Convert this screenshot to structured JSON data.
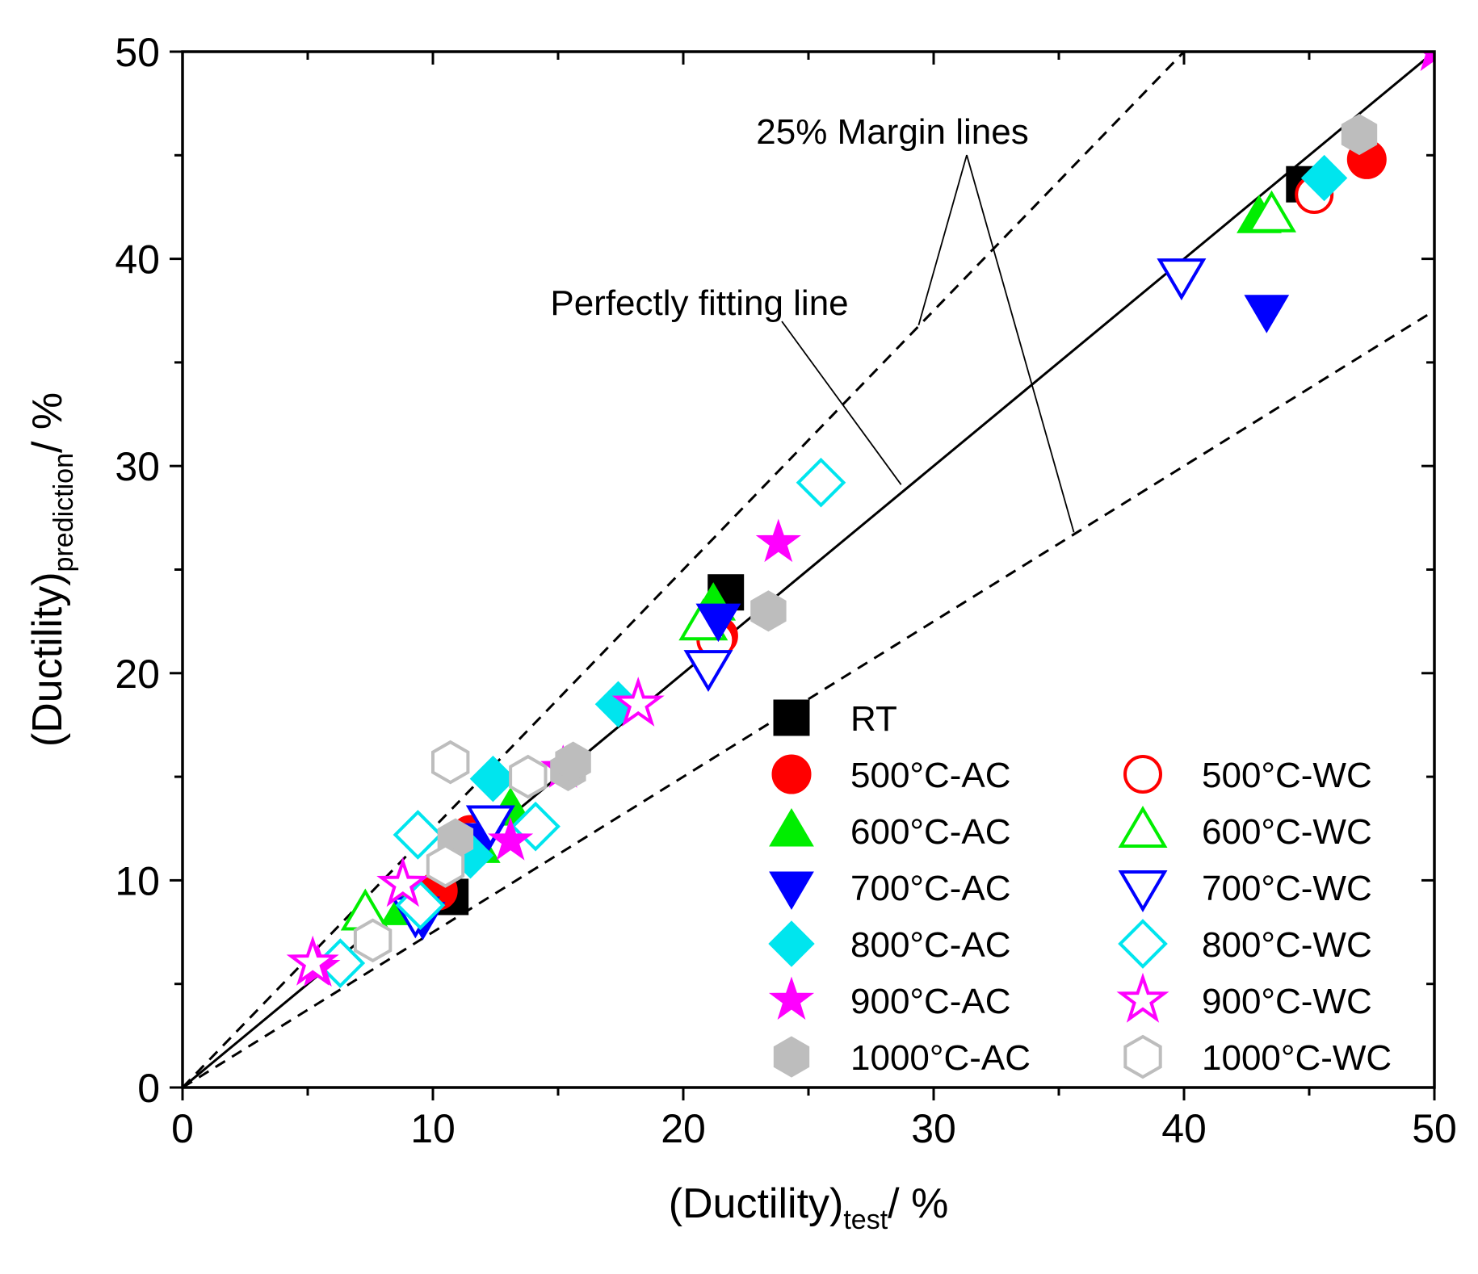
{
  "chart_data": {
    "type": "scatter",
    "title": "",
    "xlabel": {
      "main": "(Ductility)",
      "sub": "test",
      "suffix": "/ %"
    },
    "ylabel": {
      "main": "(Ductility)",
      "sub": "prediction",
      "suffix": "/ %"
    },
    "xlim": [
      0,
      50
    ],
    "ylim": [
      0,
      50
    ],
    "xticks": [
      "0",
      "10",
      "20",
      "30",
      "40",
      "50"
    ],
    "yticks": [
      "0",
      "10",
      "20",
      "30",
      "40",
      "50"
    ],
    "reference_lines": [
      {
        "name": "Perfectly fitting line",
        "slope": 1.0,
        "style": "solid"
      },
      {
        "name": "upper 25% margin",
        "slope": 1.25,
        "style": "dashed"
      },
      {
        "name": "lower 25% margin",
        "slope": 0.75,
        "style": "dashed"
      }
    ],
    "annotations": {
      "margin": "25% Margin lines",
      "fit": "Perfectly fitting line"
    },
    "series": [
      {
        "name": "RT",
        "marker": "square",
        "filled": true,
        "color": "#000000",
        "points": [
          [
            10.7,
            9.2
          ],
          [
            21.7,
            23.9
          ],
          [
            44.8,
            43.6
          ]
        ]
      },
      {
        "name": "500°C-AC",
        "marker": "circle",
        "filled": true,
        "color": "#ff0000",
        "points": [
          [
            10.2,
            9.5
          ],
          [
            11.5,
            12.2
          ],
          [
            21.4,
            21.8
          ],
          [
            47.3,
            44.8
          ]
        ]
      },
      {
        "name": "500°C-WC",
        "marker": "circle",
        "filled": false,
        "color": "#ff0000",
        "points": [
          [
            11.6,
            12.0
          ],
          [
            21.3,
            21.6
          ],
          [
            45.2,
            43.1
          ]
        ]
      },
      {
        "name": "600°C-AC",
        "marker": "triangle-up",
        "filled": true,
        "color": "#00ee00",
        "points": [
          [
            8.8,
            8.6
          ],
          [
            11.8,
            11.6
          ],
          [
            13.1,
            13.4
          ],
          [
            21.2,
            23.3
          ],
          [
            43.0,
            42.0
          ]
        ]
      },
      {
        "name": "600°C-WC",
        "marker": "triangle-up",
        "filled": false,
        "color": "#00ee00",
        "points": [
          [
            7.3,
            8.4
          ],
          [
            20.8,
            22.4
          ],
          [
            43.5,
            42.1
          ]
        ]
      },
      {
        "name": "700°C-AC",
        "marker": "triangle-down",
        "filled": true,
        "color": "#0000ff",
        "points": [
          [
            9.6,
            8.2
          ],
          [
            12.0,
            12.0
          ],
          [
            21.4,
            22.6
          ],
          [
            43.3,
            37.5
          ]
        ]
      },
      {
        "name": "700°C-WC",
        "marker": "triangle-down",
        "filled": false,
        "color": "#0000ff",
        "points": [
          [
            9.3,
            8.4
          ],
          [
            12.3,
            12.8
          ],
          [
            21.0,
            20.3
          ],
          [
            39.9,
            39.2
          ]
        ]
      },
      {
        "name": "800°C-AC",
        "marker": "diamond",
        "filled": true,
        "color": "#00e5ee",
        "points": [
          [
            11.5,
            11.2
          ],
          [
            12.4,
            14.9
          ],
          [
            17.4,
            18.5
          ],
          [
            45.6,
            43.9
          ]
        ]
      },
      {
        "name": "800°C-WC",
        "marker": "diamond",
        "filled": false,
        "color": "#00e5ee",
        "points": [
          [
            6.3,
            6.0
          ],
          [
            9.5,
            8.8
          ],
          [
            9.4,
            12.2
          ],
          [
            14.1,
            12.6
          ],
          [
            25.5,
            29.2
          ]
        ]
      },
      {
        "name": "900°C-AC",
        "marker": "star",
        "filled": true,
        "color": "#ff00ff",
        "points": [
          [
            5.4,
            5.8
          ],
          [
            13.1,
            11.9
          ],
          [
            15.2,
            15.4
          ],
          [
            23.8,
            26.3
          ],
          [
            50.0,
            50.0
          ]
        ]
      },
      {
        "name": "900°C-WC",
        "marker": "star",
        "filled": false,
        "color": "#ff00ff",
        "points": [
          [
            5.2,
            6.0
          ],
          [
            8.8,
            9.8
          ],
          [
            18.2,
            18.5
          ]
        ]
      },
      {
        "name": "1000°C-AC",
        "marker": "hexagon",
        "filled": true,
        "color": "#bdbdbd",
        "points": [
          [
            10.9,
            12.0
          ],
          [
            15.4,
            15.3
          ],
          [
            15.6,
            15.7
          ],
          [
            23.4,
            23.0
          ],
          [
            47.0,
            46.0
          ]
        ]
      },
      {
        "name": "1000°C-WC",
        "marker": "hexagon",
        "filled": false,
        "color": "#bdbdbd",
        "points": [
          [
            7.6,
            7.1
          ],
          [
            10.5,
            10.7
          ],
          [
            10.7,
            15.7
          ],
          [
            13.8,
            15.0
          ]
        ]
      }
    ],
    "legend": {
      "position": "bottom-right",
      "rows": [
        [
          "RT"
        ],
        [
          "500°C-AC",
          "500°C-WC"
        ],
        [
          "600°C-AC",
          "600°C-WC"
        ],
        [
          "700°C-AC",
          "700°C-WC"
        ],
        [
          "800°C-AC",
          "800°C-WC"
        ],
        [
          "900°C-AC",
          "900°C-WC"
        ],
        [
          "1000°C-AC",
          "1000°C-WC"
        ]
      ]
    }
  }
}
